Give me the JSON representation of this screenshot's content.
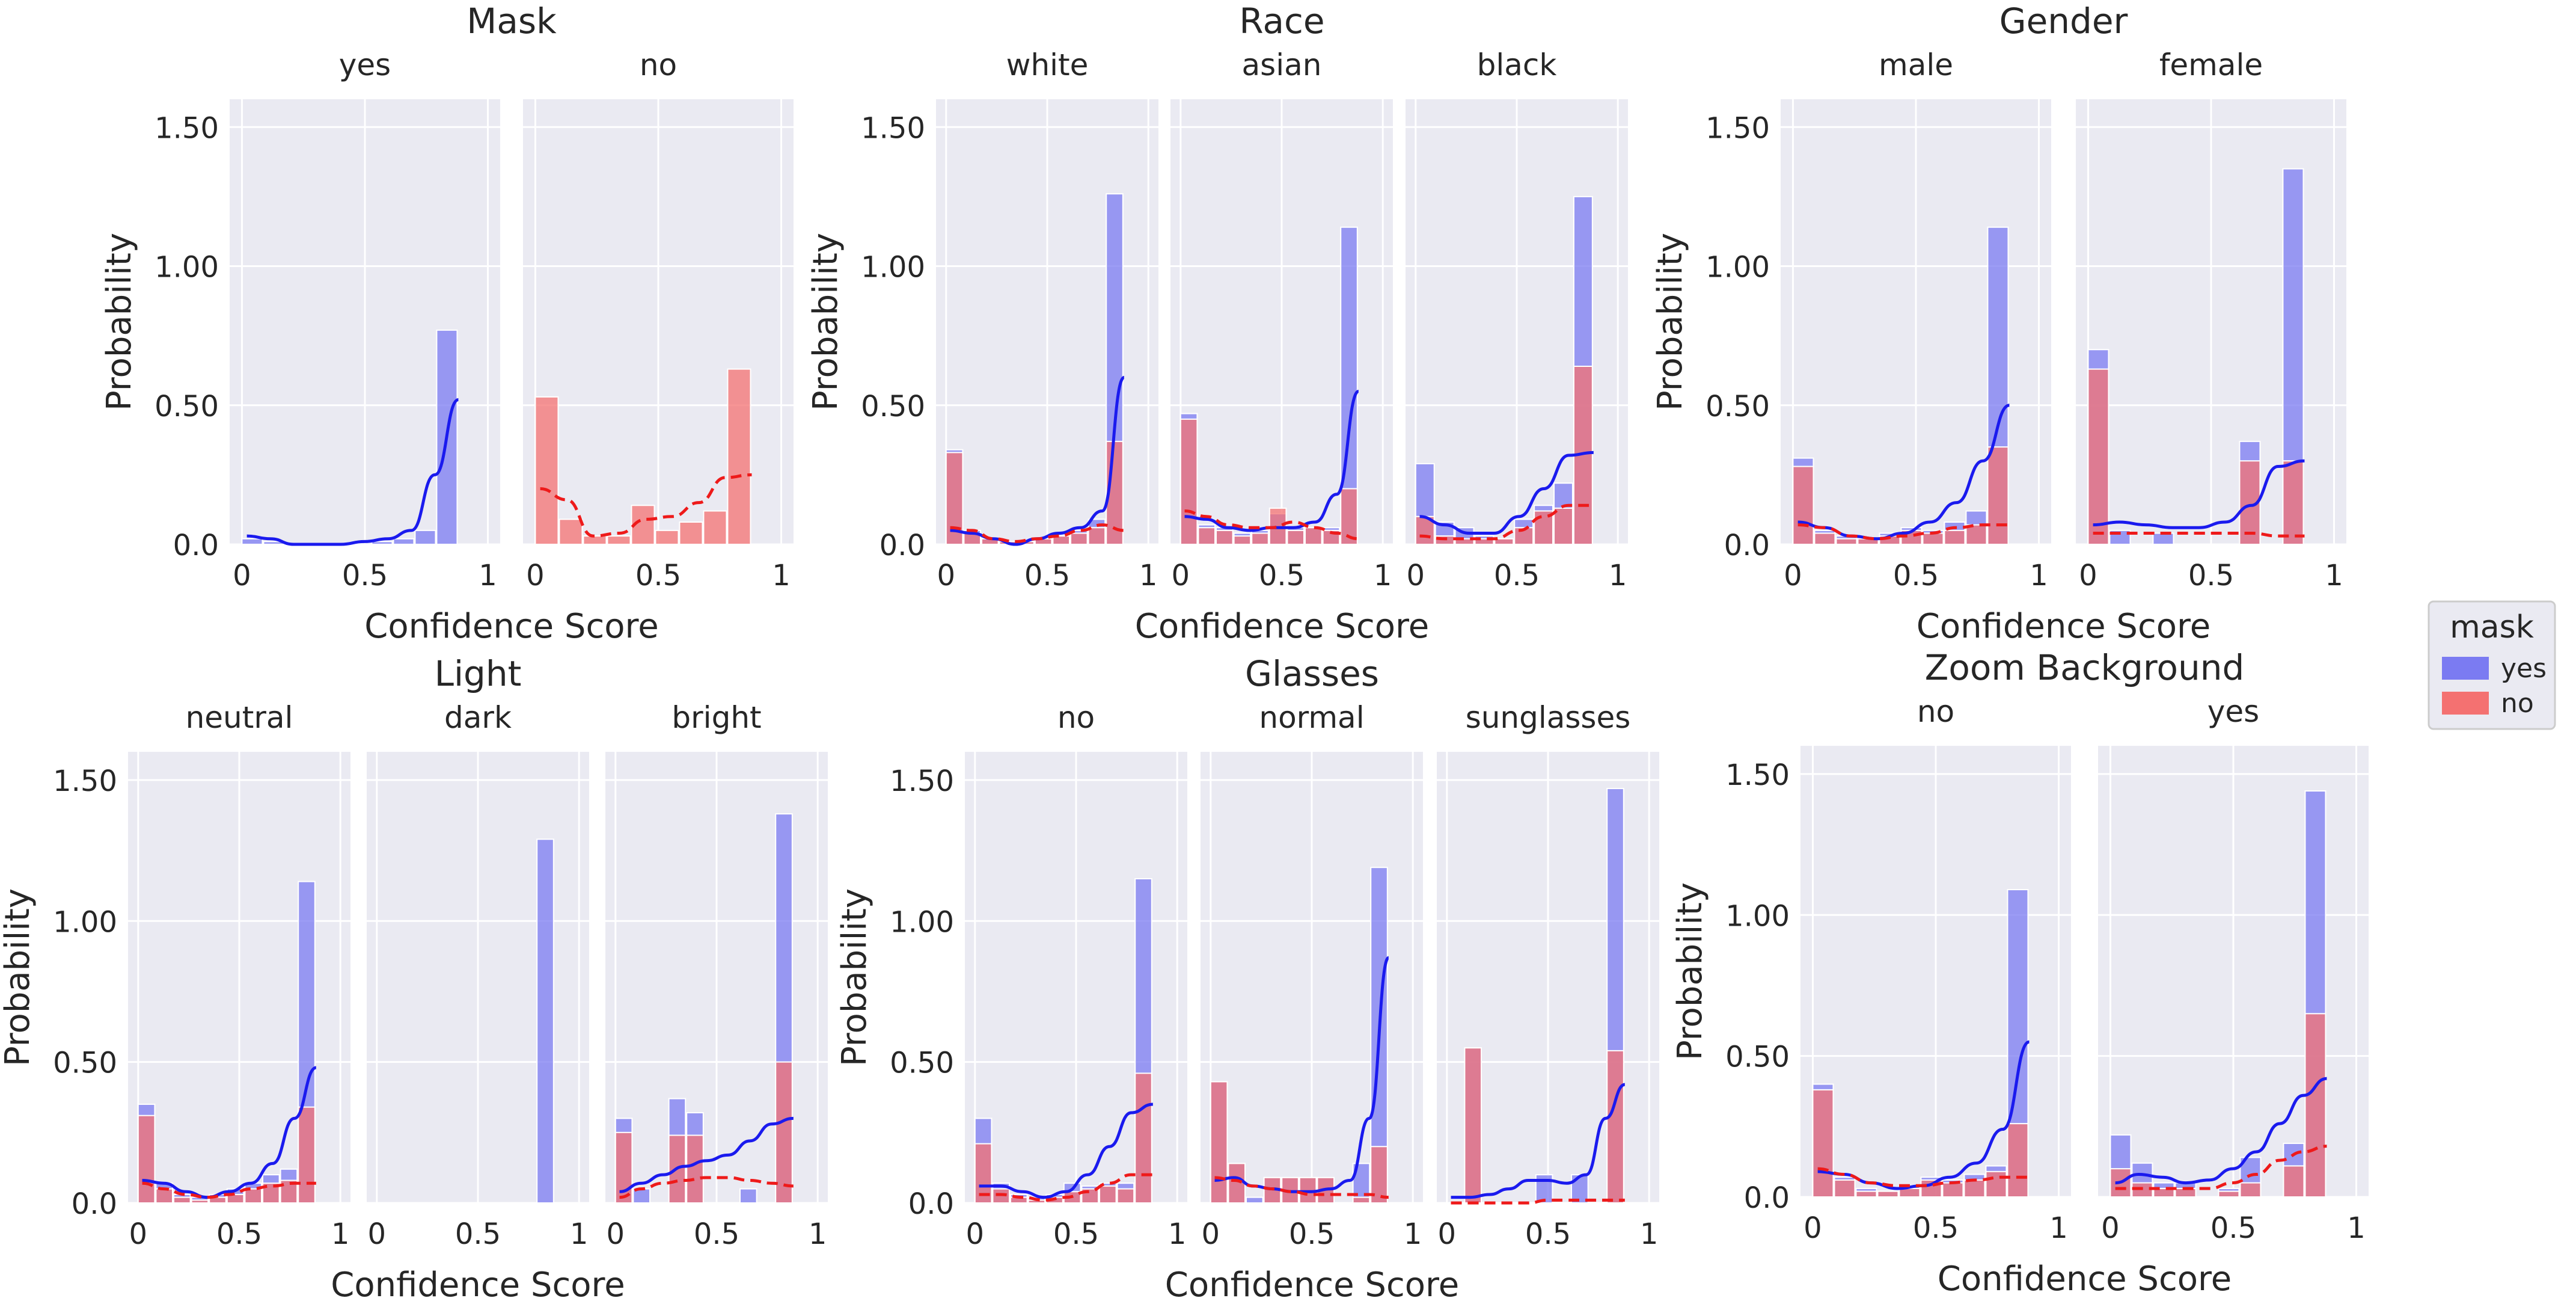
{
  "figure": {
    "legend": {
      "title": "mask",
      "entries": [
        {
          "label": "yes",
          "color": "#7b7bf2"
        },
        {
          "label": "no",
          "color": "#f47171"
        }
      ]
    },
    "colors": {
      "yes_bar": "#7b7bf2",
      "no_bar": "#f47171",
      "yes_line": "#1a1aee",
      "no_line": "#ee1a1a",
      "panel_bg": "#eaeaf2",
      "grid": "#ffffff"
    }
  },
  "chart_data": [
    {
      "type": "bar",
      "title": "Mask",
      "xlabel": "Confidence Score",
      "ylabel": "Probability",
      "ylim": [
        0,
        1.5
      ],
      "yticks": [
        "0.0",
        "0.50",
        "1.00",
        "1.50"
      ],
      "bin_width": 0.1,
      "facets": [
        {
          "label": "yes",
          "xticks": [
            "0",
            "0.5",
            "1"
          ],
          "yes": [
            0.02,
            0.01,
            0.0,
            0.0,
            0.0,
            0.0,
            0.01,
            0.02,
            0.05,
            0.77
          ],
          "no": [],
          "kde_yes": [
            0.03,
            0.02,
            0.0,
            0.0,
            0.0,
            0.01,
            0.02,
            0.05,
            0.25,
            0.52
          ],
          "kde_no": []
        },
        {
          "label": "no",
          "xticks": [
            "0",
            "0.5",
            "1"
          ],
          "yes": [],
          "no": [
            0.53,
            0.09,
            0.03,
            0.03,
            0.14,
            0.05,
            0.08,
            0.12,
            0.63
          ],
          "kde_yes": [],
          "kde_no": [
            0.2,
            0.16,
            0.03,
            0.04,
            0.09,
            0.1,
            0.15,
            0.24,
            0.25
          ]
        }
      ]
    },
    {
      "type": "bar",
      "title": "Race",
      "xlabel": "Confidence Score",
      "ylabel": "Probability",
      "ylim": [
        0,
        1.5
      ],
      "yticks": [
        "0.0",
        "0.50",
        "1.00",
        "1.50"
      ],
      "bin_width": 0.1,
      "facets": [
        {
          "label": "white",
          "xticks": [
            "0",
            "0.5",
            "1"
          ],
          "yes": [
            0.34,
            0.05,
            0.02,
            0.01,
            0.01,
            0.02,
            0.03,
            0.05,
            0.09,
            1.26
          ],
          "no": [
            0.33,
            0.04,
            0.02,
            0.01,
            0.01,
            0.02,
            0.03,
            0.04,
            0.06,
            0.37
          ],
          "kde_yes": [
            0.05,
            0.04,
            0.02,
            0.0,
            0.02,
            0.04,
            0.06,
            0.12,
            0.6
          ],
          "kde_no": [
            0.06,
            0.05,
            0.02,
            0.01,
            0.02,
            0.03,
            0.05,
            0.07,
            0.05
          ]
        },
        {
          "label": "asian",
          "xticks": [
            "0",
            "0.5",
            "1"
          ],
          "yes": [
            0.47,
            0.07,
            0.06,
            0.04,
            0.05,
            0.11,
            0.06,
            0.06,
            0.06,
            1.14
          ],
          "no": [
            0.45,
            0.06,
            0.05,
            0.03,
            0.04,
            0.13,
            0.05,
            0.06,
            0.05,
            0.2
          ],
          "kde_yes": [
            0.1,
            0.09,
            0.06,
            0.05,
            0.06,
            0.06,
            0.08,
            0.18,
            0.55
          ],
          "kde_no": [
            0.12,
            0.1,
            0.07,
            0.06,
            0.06,
            0.08,
            0.06,
            0.04,
            0.02
          ]
        },
        {
          "label": "black",
          "xticks": [
            "0",
            "0.5",
            "1"
          ],
          "yes": [
            0.29,
            0.08,
            0.06,
            0.03,
            0.02,
            0.09,
            0.14,
            0.22,
            1.25
          ],
          "no": [
            0.1,
            0.03,
            0.02,
            0.02,
            0.02,
            0.06,
            0.12,
            0.13,
            0.64
          ],
          "kde_yes": [
            0.1,
            0.07,
            0.04,
            0.04,
            0.1,
            0.2,
            0.32,
            0.33
          ],
          "kde_no": [
            0.03,
            0.02,
            0.02,
            0.02,
            0.05,
            0.1,
            0.14,
            0.14
          ]
        }
      ]
    },
    {
      "type": "bar",
      "title": "Gender",
      "xlabel": "Confidence Score",
      "ylabel": "Probability",
      "ylim": [
        0,
        1.5
      ],
      "yticks": [
        "0.0",
        "0.50",
        "1.00",
        "1.50"
      ],
      "bin_width": 0.1,
      "facets": [
        {
          "label": "male",
          "xticks": [
            "0",
            "0.5",
            "1"
          ],
          "yes": [
            0.31,
            0.05,
            0.03,
            0.02,
            0.04,
            0.06,
            0.05,
            0.08,
            0.12,
            1.14
          ],
          "no": [
            0.28,
            0.04,
            0.02,
            0.02,
            0.03,
            0.05,
            0.04,
            0.05,
            0.07,
            0.35
          ],
          "kde_yes": [
            0.08,
            0.06,
            0.03,
            0.02,
            0.04,
            0.08,
            0.15,
            0.3,
            0.5
          ],
          "kde_no": [
            0.07,
            0.06,
            0.03,
            0.02,
            0.03,
            0.04,
            0.06,
            0.07,
            0.07
          ]
        },
        {
          "label": "female",
          "xticks": [
            "0",
            "0.5",
            "1"
          ],
          "yes": [
            0.7,
            0.05,
            0.0,
            0.04,
            0.0,
            0.0,
            0.0,
            0.37,
            0.0,
            1.35
          ],
          "no": [
            0.63,
            0.0,
            0.0,
            0.0,
            0.0,
            0.0,
            0.0,
            0.3,
            0.0,
            0.3
          ],
          "kde_yes": [
            0.07,
            0.08,
            0.07,
            0.06,
            0.06,
            0.08,
            0.14,
            0.28,
            0.3
          ],
          "kde_no": [
            0.04,
            0.04,
            0.04,
            0.04,
            0.04,
            0.04,
            0.04,
            0.03,
            0.03
          ]
        }
      ]
    },
    {
      "type": "bar",
      "title": "Light",
      "xlabel": "Confidence Score",
      "ylabel": "Probability",
      "ylim": [
        0,
        1.5
      ],
      "yticks": [
        "0.0",
        "0.50",
        "1.00",
        "1.50"
      ],
      "bin_width": 0.1,
      "facets": [
        {
          "label": "neutral",
          "xticks": [
            "0",
            "0.5",
            "1"
          ],
          "yes": [
            0.35,
            0.07,
            0.03,
            0.02,
            0.03,
            0.05,
            0.07,
            0.1,
            0.12,
            1.14
          ],
          "no": [
            0.31,
            0.05,
            0.02,
            0.01,
            0.02,
            0.03,
            0.05,
            0.07,
            0.08,
            0.34
          ],
          "kde_yes": [
            0.08,
            0.07,
            0.04,
            0.02,
            0.04,
            0.07,
            0.14,
            0.3,
            0.48
          ],
          "kde_no": [
            0.07,
            0.05,
            0.03,
            0.02,
            0.03,
            0.05,
            0.06,
            0.07,
            0.07
          ]
        },
        {
          "label": "dark",
          "xticks": [
            "0",
            "0.5",
            "1"
          ],
          "yes": [
            0,
            0,
            0,
            0,
            0,
            0,
            0,
            0,
            0,
            1.29
          ],
          "no": [],
          "kde_yes": [],
          "kde_no": []
        },
        {
          "label": "bright",
          "xticks": [
            "0",
            "0.5",
            "1"
          ],
          "yes": [
            0.3,
            0.05,
            0.0,
            0.37,
            0.32,
            0.0,
            0.0,
            0.05,
            0.0,
            1.38
          ],
          "no": [
            0.25,
            0.0,
            0.0,
            0.24,
            0.24,
            0.0,
            0.0,
            0.0,
            0.0,
            0.5
          ],
          "kde_yes": [
            0.04,
            0.07,
            0.1,
            0.13,
            0.15,
            0.17,
            0.22,
            0.28,
            0.3
          ],
          "kde_no": [
            0.02,
            0.05,
            0.07,
            0.08,
            0.09,
            0.09,
            0.08,
            0.07,
            0.06
          ]
        }
      ]
    },
    {
      "type": "bar",
      "title": "Glasses",
      "xlabel": "Confidence Score",
      "ylabel": "Probability",
      "ylim": [
        0,
        1.5
      ],
      "yticks": [
        "0.0",
        "0.50",
        "1.00",
        "1.50"
      ],
      "bin_width": 0.1,
      "facets": [
        {
          "label": "no",
          "xticks": [
            "0",
            "0.5",
            "1"
          ],
          "yes": [
            0.3,
            0.07,
            0.03,
            0.02,
            0.03,
            0.07,
            0.06,
            0.07,
            0.07,
            1.15
          ],
          "no": [
            0.21,
            0.05,
            0.02,
            0.01,
            0.02,
            0.04,
            0.05,
            0.06,
            0.05,
            0.46
          ],
          "kde_yes": [
            0.06,
            0.06,
            0.04,
            0.02,
            0.04,
            0.1,
            0.2,
            0.32,
            0.35
          ],
          "kde_no": [
            0.03,
            0.03,
            0.02,
            0.01,
            0.02,
            0.04,
            0.07,
            0.1,
            0.1
          ]
        },
        {
          "label": "normal",
          "xticks": [
            "0",
            "0.5",
            "1"
          ],
          "yes": [
            0.43,
            0.14,
            0.02,
            0.09,
            0.09,
            0.09,
            0.09,
            0.0,
            0.14,
            1.19
          ],
          "no": [
            0.43,
            0.14,
            0.0,
            0.09,
            0.09,
            0.09,
            0.09,
            0.0,
            0.02,
            0.2
          ],
          "kde_yes": [
            0.08,
            0.09,
            0.06,
            0.05,
            0.04,
            0.04,
            0.05,
            0.08,
            0.3,
            0.87
          ],
          "kde_no": [
            0.09,
            0.08,
            0.06,
            0.05,
            0.04,
            0.03,
            0.03,
            0.03,
            0.03,
            0.02
          ]
        },
        {
          "label": "sunglasses",
          "xticks": [
            "0",
            "0.5",
            "1"
          ],
          "yes": [
            0.0,
            0.55,
            0.0,
            0.0,
            0.0,
            0.1,
            0.0,
            0.1,
            0.0,
            1.47
          ],
          "no": [
            0.0,
            0.55,
            0.0,
            0.0,
            0.0,
            0.0,
            0.0,
            0.0,
            0.0,
            0.54
          ],
          "kde_yes": [
            0.02,
            0.02,
            0.03,
            0.05,
            0.08,
            0.08,
            0.07,
            0.1,
            0.3,
            0.42
          ],
          "kde_no": [
            0.0,
            0.0,
            0.0,
            0.0,
            0.0,
            0.01,
            0.01,
            0.01,
            0.01,
            0.01
          ]
        }
      ]
    },
    {
      "type": "bar",
      "title": "Zoom Background",
      "xlabel": "Confidence Score",
      "ylabel": "Probability",
      "ylim": [
        0,
        1.5
      ],
      "yticks": [
        "0.0",
        "0.50",
        "1.00",
        "1.50"
      ],
      "bin_width": 0.1,
      "facets": [
        {
          "label": "no",
          "xticks": [
            "0",
            "0.5",
            "1"
          ],
          "yes": [
            0.4,
            0.07,
            0.03,
            0.02,
            0.04,
            0.07,
            0.06,
            0.08,
            0.11,
            1.09
          ],
          "no": [
            0.38,
            0.06,
            0.02,
            0.02,
            0.03,
            0.06,
            0.05,
            0.06,
            0.09,
            0.26
          ],
          "kde_yes": [
            0.09,
            0.08,
            0.05,
            0.03,
            0.04,
            0.07,
            0.12,
            0.24,
            0.55
          ],
          "kde_no": [
            0.1,
            0.08,
            0.05,
            0.04,
            0.04,
            0.05,
            0.06,
            0.07,
            0.07
          ]
        },
        {
          "label": "yes",
          "xticks": [
            "0",
            "0.5",
            "1"
          ],
          "yes": [
            0.22,
            0.12,
            0.05,
            0.05,
            0.0,
            0.03,
            0.14,
            0.0,
            0.19,
            1.44
          ],
          "no": [
            0.1,
            0.05,
            0.03,
            0.03,
            0.0,
            0.02,
            0.05,
            0.0,
            0.11,
            0.65
          ],
          "kde_yes": [
            0.05,
            0.08,
            0.07,
            0.05,
            0.06,
            0.1,
            0.16,
            0.26,
            0.36,
            0.42
          ],
          "kde_no": [
            0.03,
            0.03,
            0.03,
            0.03,
            0.03,
            0.05,
            0.08,
            0.13,
            0.16,
            0.18
          ]
        }
      ]
    }
  ]
}
